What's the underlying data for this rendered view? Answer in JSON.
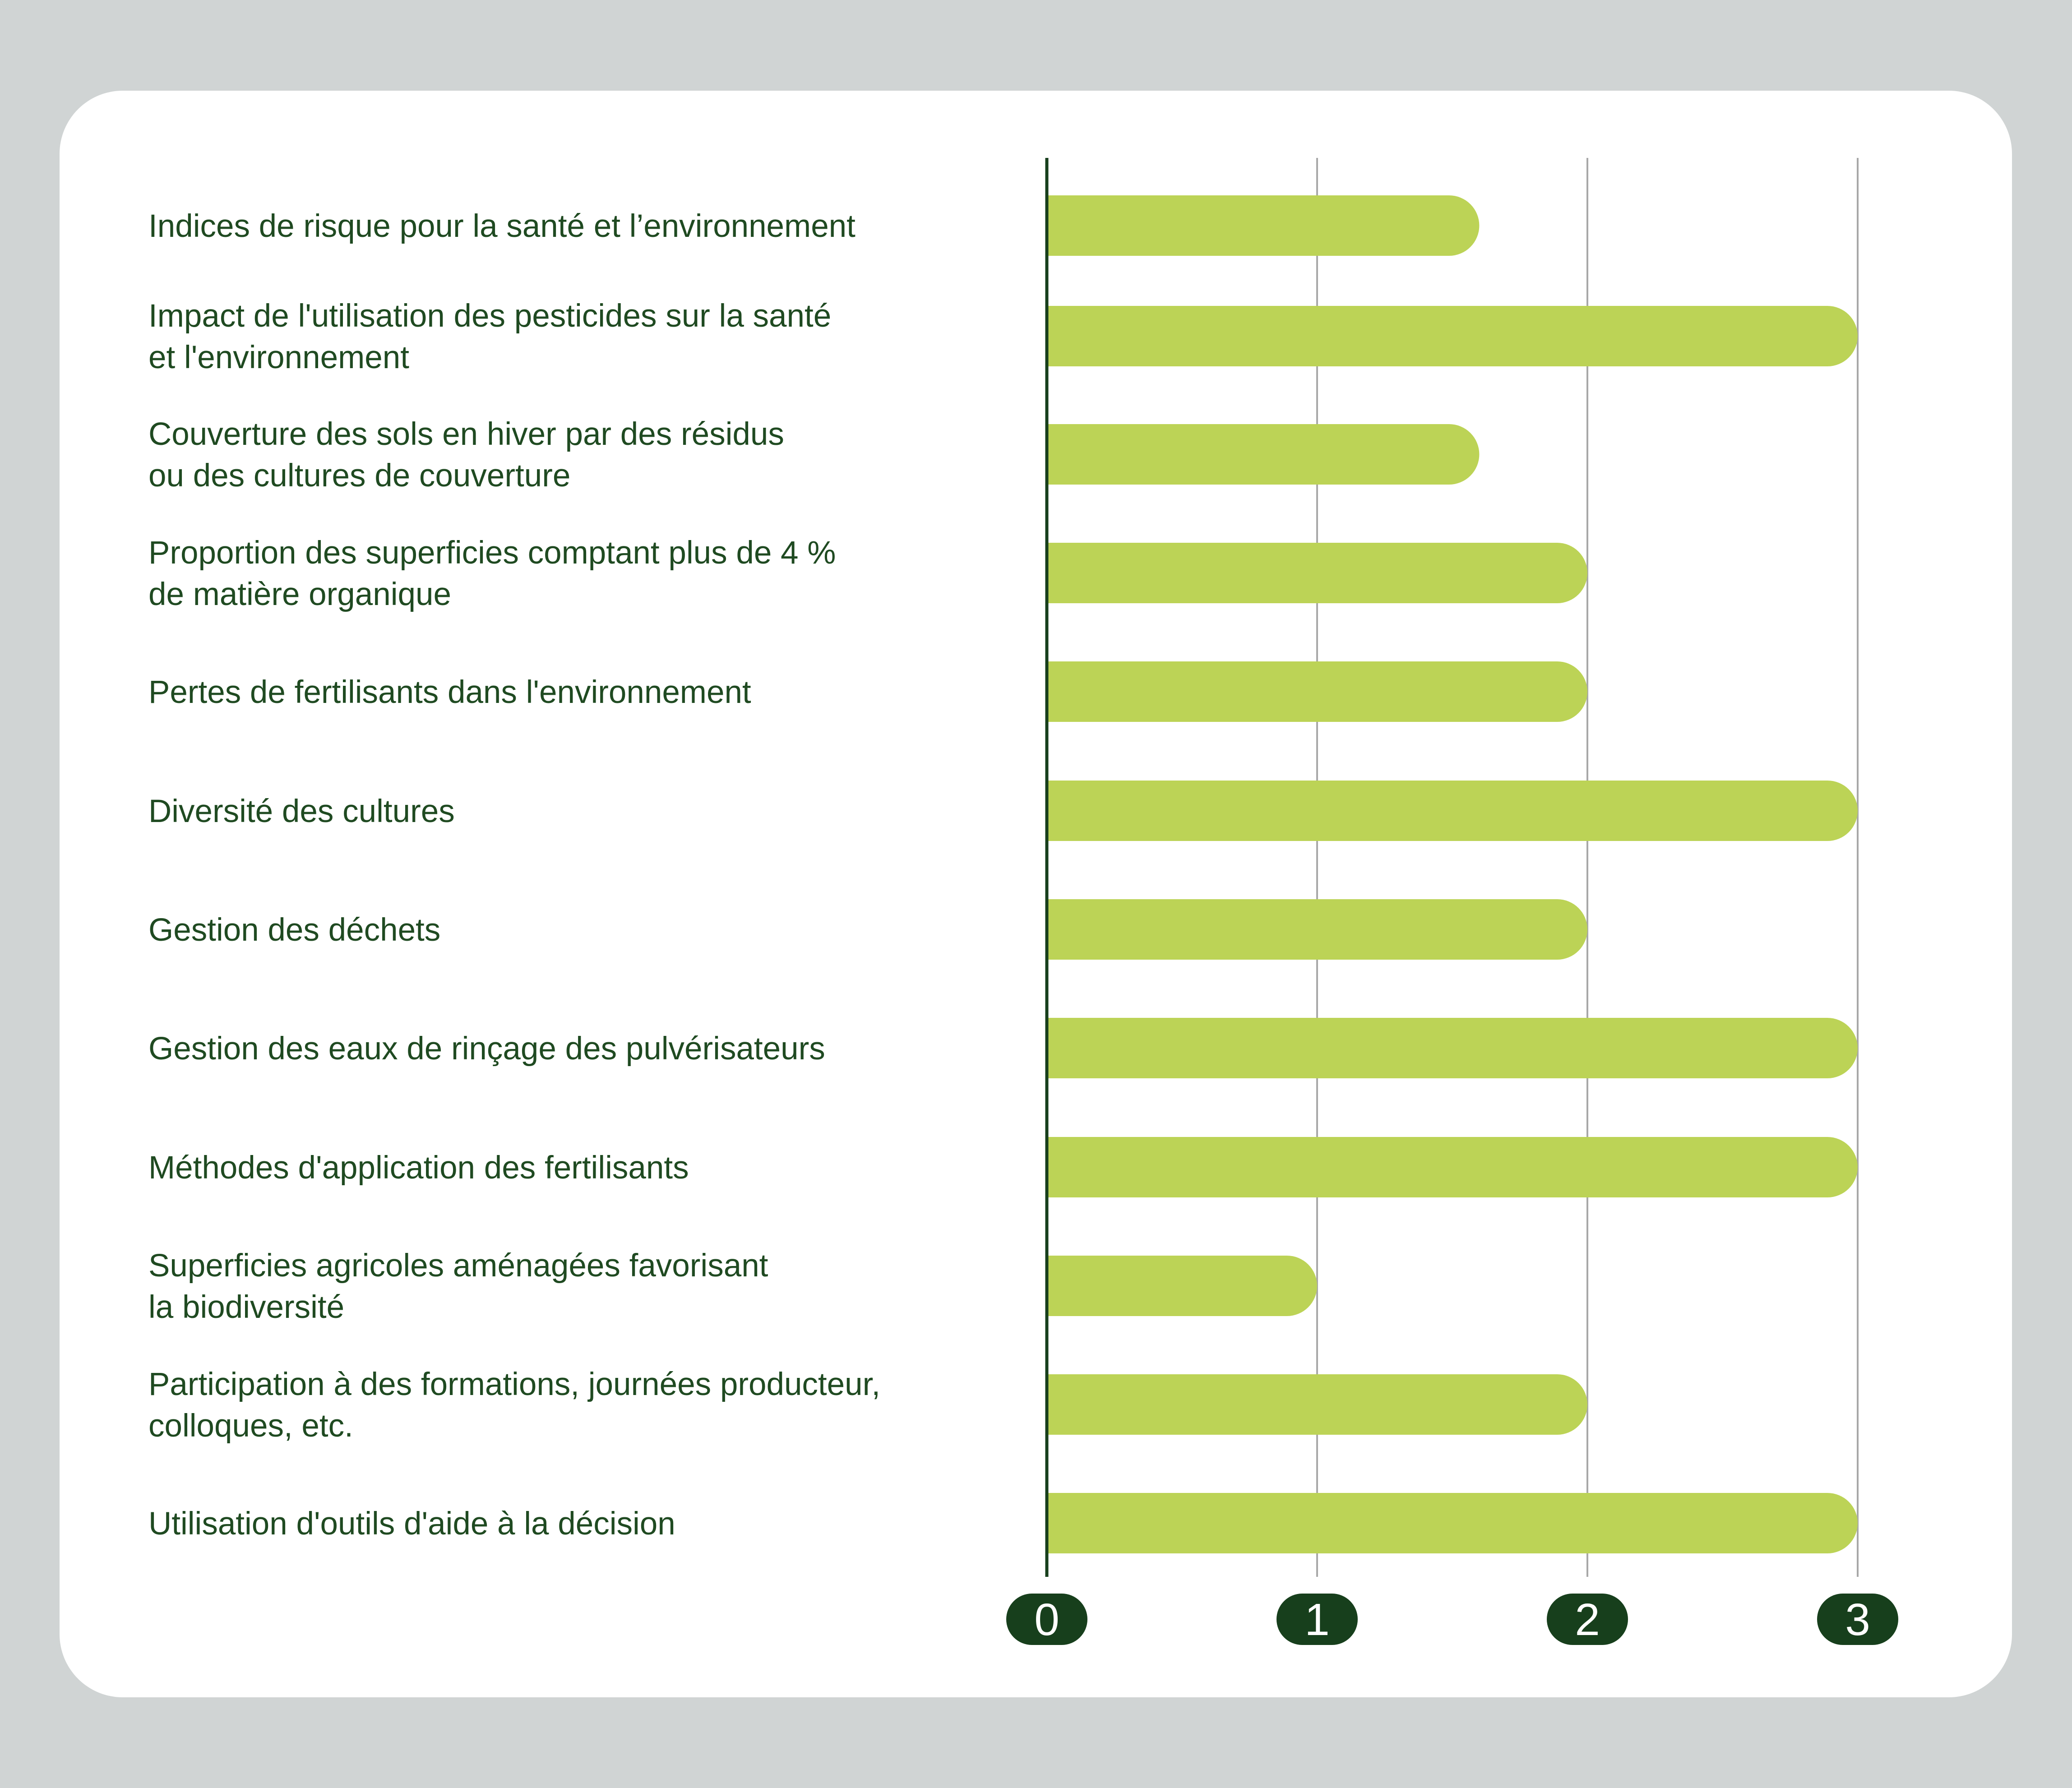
{
  "colors": {
    "background": "#d0d4d4",
    "card": "#ffffff",
    "bar": "#bcd356",
    "axis": "#173f1c",
    "grid": "#a8a8a8",
    "text": "#1f4a21",
    "tick_badge": "#173f1c",
    "tick_text": "#ffffff"
  },
  "chart_data": {
    "type": "bar",
    "orientation": "horizontal",
    "categories": [
      [
        "Indices de risque pour la santé et l’environnement"
      ],
      [
        "Impact de l'utilisation des pesticides sur la santé",
        "et l'environnement"
      ],
      [
        "Couverture des sols en hiver par des résidus",
        "ou des cultures de couverture"
      ],
      [
        "Proportion des superficies comptant plus de 4 %",
        "de matière organique"
      ],
      [
        "Pertes de fertilisants dans l'environnement"
      ],
      [
        "Diversité des cultures"
      ],
      [
        "Gestion des déchets"
      ],
      [
        "Gestion des eaux de rinçage des pulvérisateurs"
      ],
      [
        "Méthodes d'application des fertilisants"
      ],
      [
        "Superficies agricoles aménagées favorisant",
        "la biodiversité"
      ],
      [
        "Participation à des formations, journées producteur,",
        "colloques, etc."
      ],
      [
        "Utilisation d'outils d'aide à la décision"
      ]
    ],
    "values": [
      1.6,
      3,
      1.6,
      2,
      2,
      3,
      2,
      3,
      3,
      1,
      2,
      3
    ],
    "xlim": [
      0,
      3
    ],
    "xticks": [
      "0",
      "1",
      "2",
      "3"
    ],
    "grid": true,
    "title": "",
    "xlabel": "",
    "ylabel": ""
  }
}
